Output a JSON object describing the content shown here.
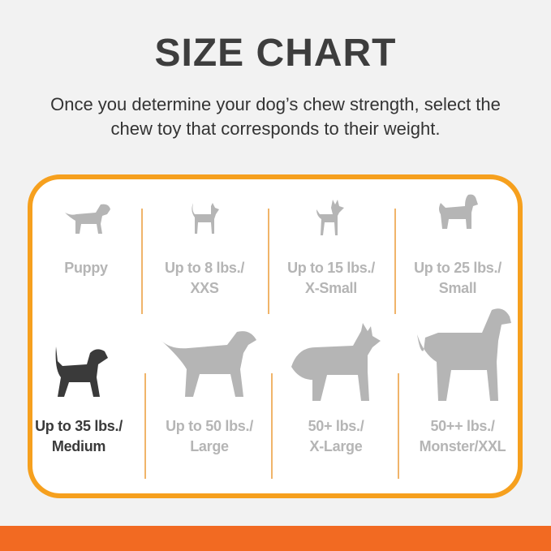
{
  "title": "SIZE CHART",
  "subtitle_line1": "Once you determine your dog’s chew strength, select the",
  "subtitle_line2": "chew toy that corresponds to their weight.",
  "colors": {
    "border": "#f6a01e",
    "bottom_bar": "#f26a22",
    "inactive": "#b5b5b5",
    "active": "#3a3a3a"
  },
  "sizes": [
    {
      "line1": "Puppy",
      "line2": "",
      "icon": "puppy-icon",
      "active": false
    },
    {
      "line1": "Up to 8 lbs./",
      "line2": "XXS",
      "icon": "chihuahua-icon",
      "active": false
    },
    {
      "line1": "Up to 15 lbs./",
      "line2": "X-Small",
      "icon": "toy-dog-icon",
      "active": false
    },
    {
      "line1": "Up to 25 lbs./",
      "line2": "Small",
      "icon": "terrier-icon",
      "active": false
    },
    {
      "line1": "Up to 35 lbs./",
      "line2": "Medium",
      "icon": "beagle-icon",
      "active": true
    },
    {
      "line1": "Up to 50 lbs./",
      "line2": "Large",
      "icon": "labrador-icon",
      "active": false
    },
    {
      "line1": "50+ lbs./",
      "line2": "X-Large",
      "icon": "shepherd-icon",
      "active": false
    },
    {
      "line1": "50++ lbs./",
      "line2": "Monster/XXL",
      "icon": "great-dane-icon",
      "active": false
    }
  ]
}
